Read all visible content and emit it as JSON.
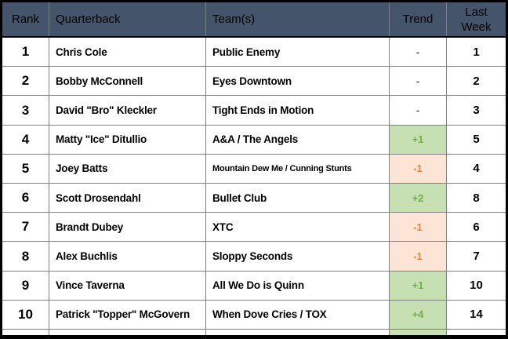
{
  "table": {
    "columns": [
      {
        "label": "Rank"
      },
      {
        "label": "Quarterback"
      },
      {
        "label": "Team(s)"
      },
      {
        "label": "Trend"
      },
      {
        "label": "Last\nWeek"
      }
    ],
    "rows": [
      {
        "rank": "1",
        "quarterback": "Chris Cole",
        "teams": "Public Enemy",
        "trend": "-",
        "trend_dir": "none",
        "last_week": "1"
      },
      {
        "rank": "2",
        "quarterback": "Bobby McConnell",
        "teams": "Eyes Downtown",
        "trend": "-",
        "trend_dir": "none",
        "last_week": "2"
      },
      {
        "rank": "3",
        "quarterback": "David \"Bro\" Kleckler",
        "teams": "Tight Ends in Motion",
        "trend": "-",
        "trend_dir": "none",
        "last_week": "3"
      },
      {
        "rank": "4",
        "quarterback": "Matty \"Ice\" Ditullio",
        "teams": "A&A / The Angels",
        "trend": "+1",
        "trend_dir": "up",
        "last_week": "5"
      },
      {
        "rank": "5",
        "quarterback": "Joey Batts",
        "teams": "Mountain Dew Me / Cunning Stunts",
        "trend": "-1",
        "trend_dir": "down",
        "last_week": "4"
      },
      {
        "rank": "6",
        "quarterback": "Scott Drosendahl",
        "teams": "Bullet Club",
        "trend": "+2",
        "trend_dir": "up",
        "last_week": "8"
      },
      {
        "rank": "7",
        "quarterback": "Brandt Dubey",
        "teams": "XTC",
        "trend": "-1",
        "trend_dir": "down",
        "last_week": "6"
      },
      {
        "rank": "8",
        "quarterback": "Alex Buchlis",
        "teams": "Sloppy Seconds",
        "trend": "-1",
        "trend_dir": "down",
        "last_week": "7"
      },
      {
        "rank": "9",
        "quarterback": "Vince Taverna",
        "teams": "All We Do is Quinn",
        "trend": "+1",
        "trend_dir": "up",
        "last_week": "10"
      },
      {
        "rank": "10",
        "quarterback": "Patrick \"Topper\" McGovern",
        "teams": "When Dove Cries / TOX",
        "trend": "+4",
        "trend_dir": "up",
        "last_week": "14"
      }
    ]
  },
  "colors": {
    "header_bg": "#44546A",
    "header_text": "#FFFFFF",
    "trend_up_bg": "#C6E0B4",
    "trend_up_text": "#70AD47",
    "trend_down_bg": "#FCE4D6",
    "trend_down_text": "#ED7D31",
    "grid_line": "#808080",
    "outer_border": "#000000"
  }
}
